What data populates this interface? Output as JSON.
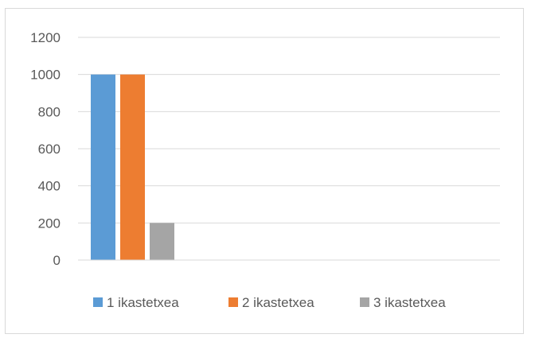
{
  "chart_data": {
    "type": "bar",
    "categories": [
      ""
    ],
    "series": [
      {
        "name": "1 ikastetxea",
        "values": [
          1000
        ],
        "color": "#5b9bd5"
      },
      {
        "name": "2 ikastetxea",
        "values": [
          1000
        ],
        "color": "#ed7d31"
      },
      {
        "name": "3 ikastetxea",
        "values": [
          200
        ],
        "color": "#a5a5a5"
      }
    ],
    "yticks": [
      "0",
      "200",
      "400",
      "600",
      "800",
      "1000",
      "1200"
    ],
    "ylim": [
      0,
      1200
    ],
    "grid": true,
    "legend_position": "bottom"
  }
}
